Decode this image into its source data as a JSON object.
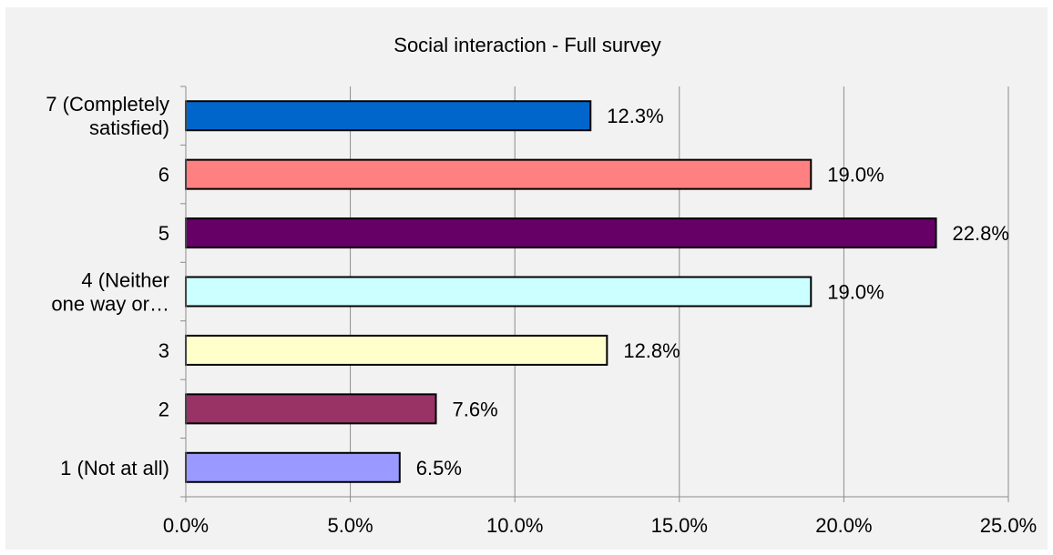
{
  "chart_data": {
    "type": "bar",
    "orientation": "horizontal",
    "title": "Social interaction - Full survey",
    "categories": [
      "7 (Completely satisfied)",
      "6",
      "5",
      "4 (Neither one way or…",
      "3",
      "2",
      "1 (Not at all)"
    ],
    "category_label_lines": [
      [
        "7 (Completely",
        "satisfied)"
      ],
      [
        "6"
      ],
      [
        "5"
      ],
      [
        "4 (Neither",
        "one way or…"
      ],
      [
        "3"
      ],
      [
        "2"
      ],
      [
        "1 (Not at all)"
      ]
    ],
    "values": [
      12.3,
      19.0,
      22.8,
      19.0,
      12.8,
      7.6,
      6.5
    ],
    "data_labels": [
      "12.3%",
      "19.0%",
      "22.8%",
      "19.0%",
      "12.8%",
      "7.6%",
      "6.5%"
    ],
    "colors": [
      "#0066cc",
      "#ff8080",
      "#660066",
      "#ccffff",
      "#ffffcc",
      "#993366",
      "#9999ff"
    ],
    "xlim": [
      0,
      25
    ],
    "x_ticks": [
      0,
      5,
      10,
      15,
      20,
      25
    ],
    "x_tick_labels": [
      "0.0%",
      "5.0%",
      "10.0%",
      "15.0%",
      "20.0%",
      "25.0%"
    ],
    "grid": "vertical",
    "legend": "none"
  }
}
